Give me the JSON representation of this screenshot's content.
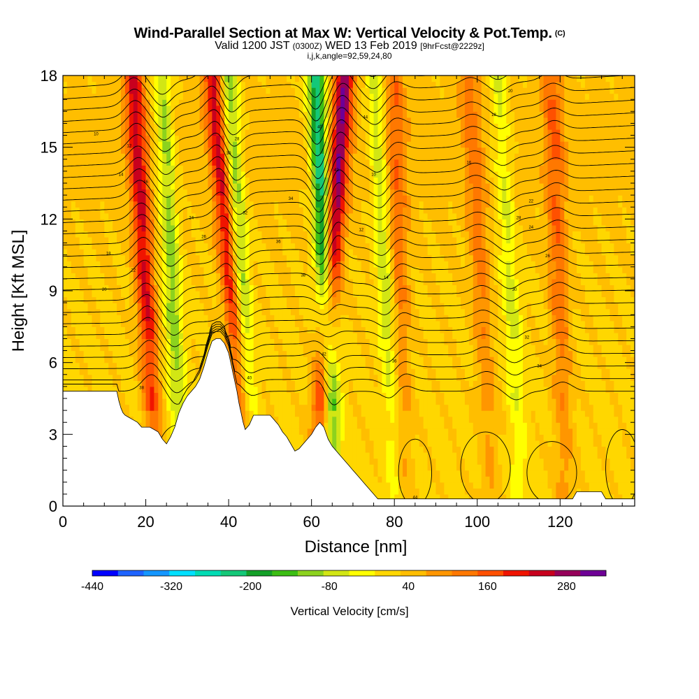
{
  "header": {
    "title": "Wind-Parallel Section at Max W: Vertical Velocity & Pot.Temp.",
    "title_mark": "(C)",
    "valid_prefix": "Valid 1200 JST",
    "valid_utc": "(0300Z)",
    "valid_date": "WED 13 Feb 2019",
    "forecast_info": "[9hrFcst@2229z]",
    "indices": "i,j,k,angle=92,59,24,80"
  },
  "colorbar": {
    "title": "Vertical Velocity [cm/s]",
    "tick_labels": [
      "-440",
      "-320",
      "-200",
      "-80",
      "40",
      "160",
      "280"
    ],
    "colors": [
      "#0000ff",
      "#1e63ff",
      "#1496ff",
      "#00e0ff",
      "#00dcb4",
      "#14c878",
      "#14a028",
      "#3cbe14",
      "#8cd21e",
      "#d2e614",
      "#ffff00",
      "#ffd700",
      "#ffbe00",
      "#ff9600",
      "#ff7800",
      "#ff5000",
      "#f01400",
      "#c8001e",
      "#96005a",
      "#6e0096"
    ]
  },
  "chart_data": {
    "type": "heatmap",
    "title": "Wind-Parallel Section at Max W: Vertical Velocity & Pot.Temp.",
    "xlabel": "Distance [nm]",
    "ylabel": "Height [Kft MSL]",
    "xlim": [
      0,
      138
    ],
    "ylim": [
      0,
      18
    ],
    "x_ticks": [
      "0",
      "20",
      "40",
      "60",
      "80",
      "100",
      "120"
    ],
    "y_ticks": [
      "0",
      "3",
      "6",
      "9",
      "12",
      "15",
      "18"
    ],
    "z_label": "Vertical Velocity [cm/s]",
    "z_range": [
      -440,
      340
    ],
    "updraft_bands": [
      {
        "x_top": 17,
        "x_bottom": 22,
        "w": 200
      },
      {
        "x_top": 36,
        "x_bottom": 44,
        "w": 200
      },
      {
        "x_top": 68,
        "x_bottom": 62,
        "w": 260
      },
      {
        "x_top": 80,
        "x_bottom": 82,
        "w": 100
      },
      {
        "x_top": 98,
        "x_bottom": 103,
        "w": 90
      },
      {
        "x_top": 118,
        "x_bottom": 121,
        "w": 110
      }
    ],
    "downdraft_bands": [
      {
        "x_top": 24,
        "x_bottom": 28,
        "w": -140
      },
      {
        "x_top": 40,
        "x_bottom": 45,
        "w": -160
      },
      {
        "x_top": 61,
        "x_bottom": 65,
        "w": -280
      },
      {
        "x_top": 75,
        "x_bottom": 80,
        "w": -110
      },
      {
        "x_top": 105,
        "x_bottom": 110,
        "w": -90
      }
    ],
    "terrain": [
      [
        0,
        4.8
      ],
      [
        13,
        4.8
      ],
      [
        13.5,
        4.4
      ],
      [
        14,
        4.1
      ],
      [
        14.5,
        3.9
      ],
      [
        15,
        3.8
      ],
      [
        16,
        3.7
      ],
      [
        17,
        3.6
      ],
      [
        18,
        3.5
      ],
      [
        19,
        3.3
      ],
      [
        21,
        3.3
      ],
      [
        23,
        3.1
      ],
      [
        24,
        2.8
      ],
      [
        25,
        2.6
      ],
      [
        26,
        2.9
      ],
      [
        27,
        3.3
      ],
      [
        28,
        3.9
      ],
      [
        29,
        4.3
      ],
      [
        30,
        4.6
      ],
      [
        31,
        4.8
      ],
      [
        32,
        5.0
      ],
      [
        33,
        5.3
      ],
      [
        34,
        5.8
      ],
      [
        35,
        6.4
      ],
      [
        36,
        6.9
      ],
      [
        37,
        7.0
      ],
      [
        38,
        7.0
      ],
      [
        39,
        6.8
      ],
      [
        40,
        6.4
      ],
      [
        40.5,
        6.0
      ],
      [
        41,
        5.6
      ],
      [
        41.5,
        5.2
      ],
      [
        42,
        4.8
      ],
      [
        42.5,
        4.3
      ],
      [
        43,
        3.9
      ],
      [
        43.5,
        3.5
      ],
      [
        44,
        3.2
      ],
      [
        45,
        3.4
      ],
      [
        46,
        3.8
      ],
      [
        50,
        3.8
      ],
      [
        51,
        3.6
      ],
      [
        52,
        3.4
      ],
      [
        53,
        3.1
      ],
      [
        54,
        2.9
      ],
      [
        55,
        2.6
      ],
      [
        56,
        2.3
      ],
      [
        57,
        2.4
      ],
      [
        58,
        2.6
      ],
      [
        59,
        2.8
      ],
      [
        60,
        3.0
      ],
      [
        61,
        3.3
      ],
      [
        62,
        3.5
      ],
      [
        63,
        3.3
      ],
      [
        64,
        2.8
      ],
      [
        65,
        2.5
      ],
      [
        66,
        2.3
      ],
      [
        67,
        2.1
      ],
      [
        68,
        1.9
      ],
      [
        69,
        1.7
      ],
      [
        70,
        1.5
      ],
      [
        71,
        1.3
      ],
      [
        72,
        1.1
      ],
      [
        73,
        0.9
      ],
      [
        74,
        0.7
      ],
      [
        75,
        0.5
      ],
      [
        76,
        0.3
      ],
      [
        108,
        0.3
      ],
      [
        110,
        0.3
      ],
      [
        115,
        0.3
      ],
      [
        118,
        0.3
      ],
      [
        123,
        0.3
      ],
      [
        124,
        0.6
      ],
      [
        130,
        0.6
      ],
      [
        131,
        0.3
      ],
      [
        138,
        0.3
      ]
    ],
    "theta_contours": {
      "count": 28,
      "label_values": [
        "10",
        "12",
        "14",
        "16",
        "18",
        "20",
        "22",
        "24",
        "26",
        "28",
        "30",
        "32",
        "34",
        "36",
        "38",
        "40",
        "42",
        "44"
      ]
    }
  }
}
